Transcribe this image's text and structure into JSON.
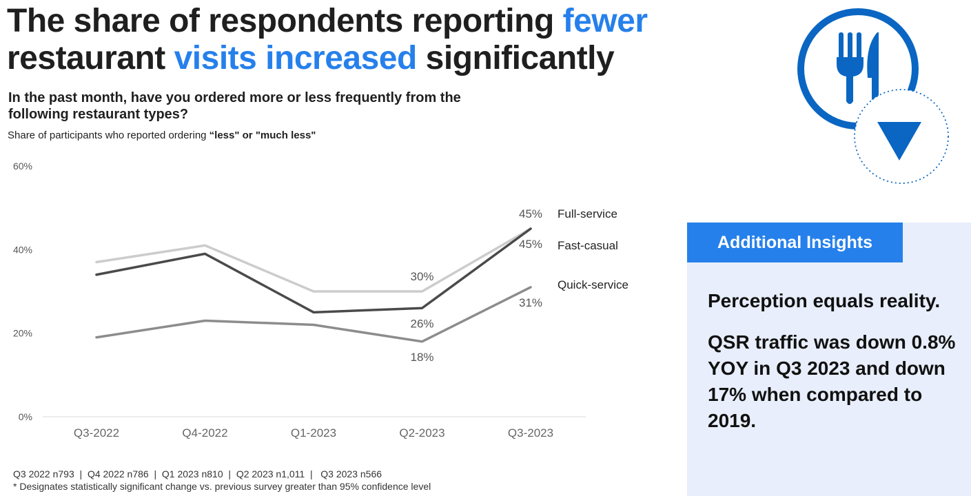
{
  "title": {
    "part1": "The share of respondents reporting ",
    "highlight1": "fewer",
    "part2": "restaurant ",
    "highlight2": "visits increased",
    "part3": " significantly"
  },
  "question": "In the past month, have you ordered more or less frequently from the following restaurant types?",
  "subtitle": {
    "prefix": "Share of participants who reported ordering ",
    "emphasis": "“less\" or \"much less\""
  },
  "chart_data": {
    "type": "line",
    "categories": [
      "Q3-2022",
      "Q4-2022",
      "Q1-2023",
      "Q2-2023",
      "Q3-2023"
    ],
    "y_ticks": [
      "0%",
      "20%",
      "40%",
      "60%"
    ],
    "ylim": [
      0,
      60
    ],
    "series": [
      {
        "name": "Full-service",
        "values": [
          37,
          41,
          30,
          30,
          45
        ],
        "color": "#cccccc",
        "labels": [
          {
            "index": 3,
            "text": "30%"
          },
          {
            "index": 4,
            "text": "45%"
          }
        ]
      },
      {
        "name": "Fast-casual",
        "values": [
          34,
          39,
          25,
          26,
          45
        ],
        "color": "#4a4a4a",
        "labels": [
          {
            "index": 3,
            "text": "26%"
          },
          {
            "index": 4,
            "text": "45%"
          }
        ]
      },
      {
        "name": "Quick-service",
        "values": [
          19,
          23,
          22,
          18,
          31
        ],
        "color": "#8c8c8c",
        "labels": [
          {
            "index": 3,
            "text": "18%"
          },
          {
            "index": 4,
            "text": "31%"
          }
        ]
      }
    ]
  },
  "footnote": {
    "samples": "Q3 2022 n793  |  Q4 2022 n786  |  Q1 2023 n810  |  Q2 2023 n1,011  |   Q3 2023 n566",
    "note": "* Designates statistically significant change vs. previous survey greater than 95% confidence level"
  },
  "icon": {
    "name": "restaurant-decline-icon",
    "color": "#0a66c2"
  },
  "insights": {
    "header": "Additional Insights",
    "lead": "Perception equals reality.",
    "body": "QSR traffic was down 0.8% YOY in Q3 2023 and down 17% when compared to 2019."
  }
}
